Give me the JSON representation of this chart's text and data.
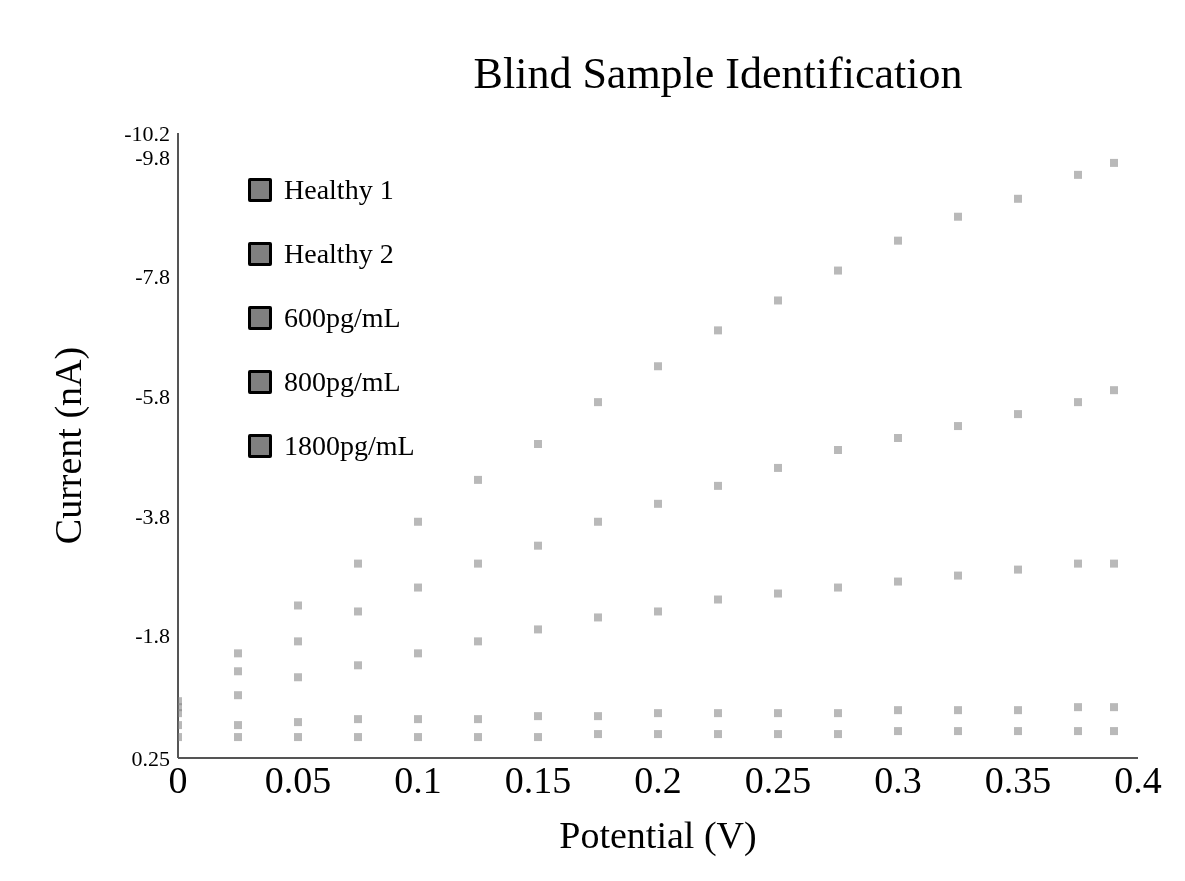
{
  "chart_data": {
    "type": "scatter",
    "title": "Blind Sample Identification",
    "xlabel": "Potential (V)",
    "ylabel": "Current (nA)",
    "x": [
      0,
      0.025,
      0.05,
      0.075,
      0.1,
      0.125,
      0.15,
      0.175,
      0.2,
      0.225,
      0.25,
      0.275,
      0.3,
      0.325,
      0.35,
      0.375,
      0.39
    ],
    "series": [
      {
        "name": "Healthy 1",
        "color": "#808080",
        "values": [
          -0.1,
          -0.1,
          -0.1,
          -0.1,
          -0.1,
          -0.1,
          -0.1,
          -0.15,
          -0.15,
          -0.15,
          -0.15,
          -0.15,
          -0.2,
          -0.2,
          -0.2,
          -0.2,
          -0.2
        ]
      },
      {
        "name": "Healthy 2",
        "color": "#808080",
        "values": [
          -0.3,
          -0.3,
          -0.35,
          -0.4,
          -0.4,
          -0.4,
          -0.45,
          -0.45,
          -0.5,
          -0.5,
          -0.5,
          -0.5,
          -0.55,
          -0.55,
          -0.55,
          -0.6,
          -0.6
        ]
      },
      {
        "name": "600pg/mL",
        "color": "#808080",
        "values": [
          -0.5,
          -0.8,
          -1.1,
          -1.3,
          -1.5,
          -1.7,
          -1.9,
          -2.1,
          -2.2,
          -2.4,
          -2.5,
          -2.6,
          -2.7,
          -2.8,
          -2.9,
          -3.0,
          -3.0
        ]
      },
      {
        "name": "800pg/mL",
        "color": "#808080",
        "values": [
          -0.6,
          -1.2,
          -1.7,
          -2.2,
          -2.6,
          -3.0,
          -3.3,
          -3.7,
          -4.0,
          -4.3,
          -4.6,
          -4.9,
          -5.1,
          -5.3,
          -5.5,
          -5.7,
          -5.9
        ]
      },
      {
        "name": "1800pg/mL",
        "color": "#808080",
        "values": [
          -0.7,
          -1.5,
          -2.3,
          -3.0,
          -3.7,
          -4.4,
          -5.0,
          -5.7,
          -6.3,
          -6.9,
          -7.4,
          -7.9,
          -8.4,
          -8.8,
          -9.1,
          -9.5,
          -9.7
        ]
      }
    ],
    "xlim": [
      0,
      0.4
    ],
    "xticks": [
      0,
      0.05,
      0.1,
      0.15,
      0.2,
      0.25,
      0.3,
      0.35,
      0.4
    ],
    "ylim": [
      0.25,
      -10.2
    ],
    "yticks": [
      0.25,
      -1.8,
      -3.8,
      -5.8,
      -7.8,
      -9.8,
      -10.2
    ],
    "grid": false,
    "legend": "top left",
    "marker": "square"
  }
}
